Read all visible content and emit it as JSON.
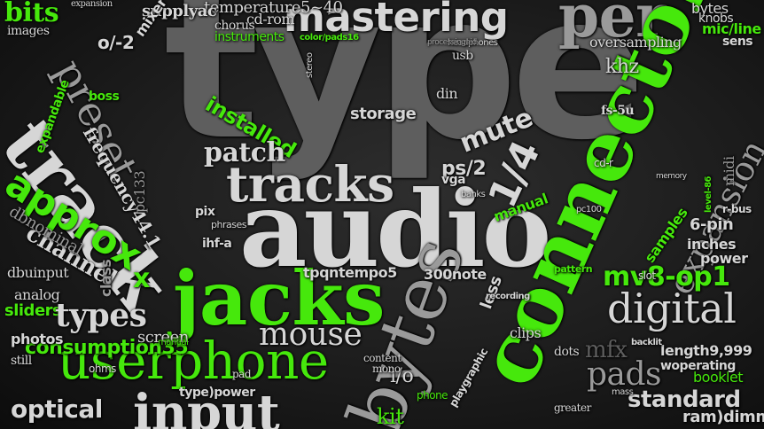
{
  "colors": {
    "green": "#46e80c",
    "light": "#d6d6d6",
    "mid": "#9a9a9a",
    "dark": "#5e5e5e",
    "darker": "#454545"
  },
  "words": {
    "type": "type",
    "audio": "audio",
    "connector": "connector",
    "jacks": "jacks",
    "track": "track",
    "bytes": "bytes",
    "mastering": "mastering",
    "per": "per",
    "tracks": "tracks",
    "digital": "digital",
    "userphone": "userphone",
    "input": "input",
    "approx": "approx",
    "preset": "preset",
    "mouse": "mouse",
    "types": "types",
    "mv8_op1": "mv8-op1",
    "patch": "patch",
    "mute": "mute",
    "pads": "pads",
    "standard": "standard",
    "expansion": "expansion",
    "optical": "optical",
    "installed": "installed",
    "bits": "bits",
    "channel": "channel",
    "temperature": "temperature5~40",
    "cd_rom": "cd-rom",
    "supplyac": "supplyac",
    "expansion_top": "expansion",
    "sens": "sens",
    "bytes_tr": "bytes",
    "knobs": "knobs",
    "mic_line": "mic/line",
    "oversampling": "oversampling",
    "khz": "khz",
    "length": "length9,999",
    "class": "class",
    "consumption": "consumption35",
    "sliders": "sliders",
    "photos": "photos",
    "screen": "screen",
    "analog": "analog",
    "mfx": "mfx",
    "backlit": "backlit",
    "expandable": "expandable",
    "manual": "manual",
    "kit": "kit",
    "dbuinput": "dbuinput",
    "dbnominal": "dbnominal",
    "six_pin": "6-pin",
    "inches": "inches",
    "power": "power",
    "samples": "samples",
    "frequency": "frequency44.1",
    "instruments": "instruments",
    "chorus": "chorus",
    "color_pads": "color/pads16",
    "ram_dimm": "ram)dimm",
    "dots": "dots",
    "clips": "clips",
    "ps2": "ps/2",
    "quarter": "1/4",
    "playgraphic": "playgraphic",
    "pc133": "pc133",
    "tpqn": "tpqntempo5",
    "note": "300note",
    "phrases": "phrases",
    "slot": "slot",
    "mass": "mass",
    "booklet": "booklet",
    "woperating": "woperating",
    "greater": "greater",
    "vga": "vga",
    "boss": "boss",
    "stereo": "stereo",
    "storage": "storage",
    "mixer": "mixer",
    "o_2": "o/-2",
    "cd_r": "cd-r",
    "pix": "pix",
    "pc100": "pc100",
    "ihf": "ihf-a",
    "still": "still",
    "ohms": "ohms",
    "din": "din",
    "pattern": "pattern",
    "usb": "usb",
    "images": "images",
    "content": "content",
    "pad": "pad",
    "io": "i/o",
    "x_mark": "x",
    "less": "less",
    "mono": "mono",
    "phone": "phone",
    "recording": "recording",
    "type_power": "type)power",
    "fs5u": "fs-5u",
    "r_bus": "r-bus",
    "memory": "memory",
    "midi": "midi",
    "headphones": "headphones",
    "processing": "processingaid",
    "manual_sm": "manual",
    "bank": "banks",
    "level": "level-86"
  }
}
